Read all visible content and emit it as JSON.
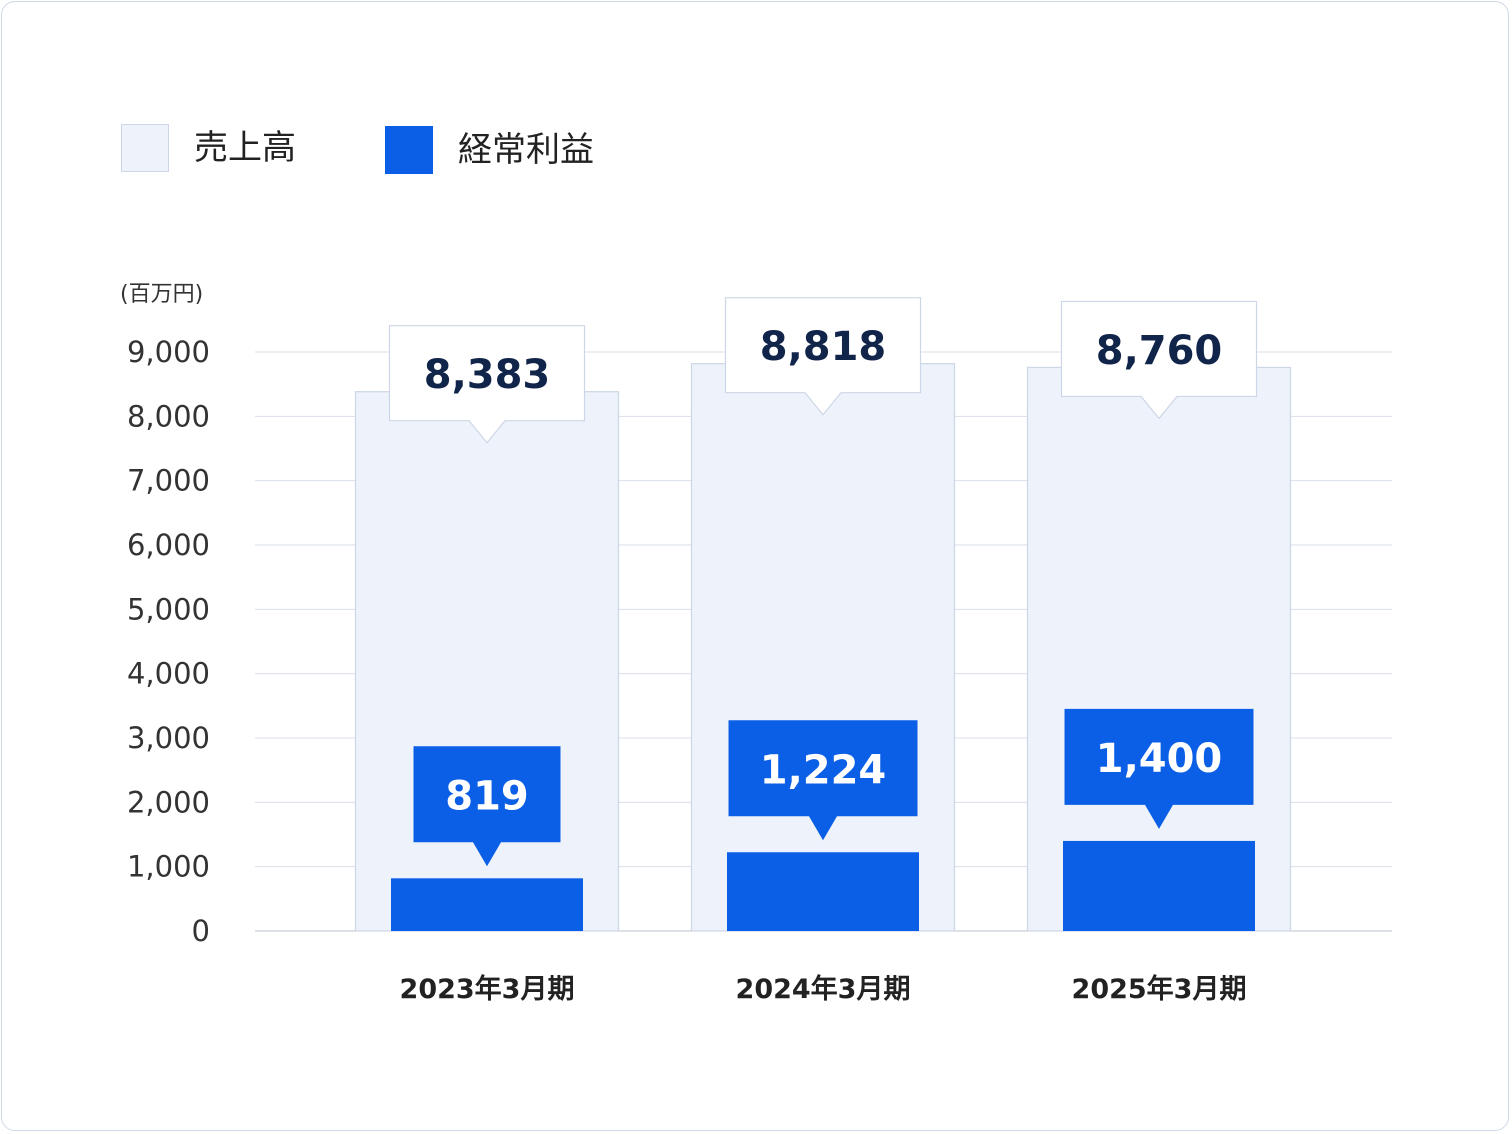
{
  "chart_data": {
    "type": "bar",
    "unit": "(百万円)",
    "categories": [
      "2023年3月期",
      "2024年3月期",
      "2025年3月期"
    ],
    "series": [
      {
        "name": "売上高",
        "values": [
          8383,
          8818,
          8760
        ],
        "labels": [
          "8,383",
          "8,818",
          "8,760"
        ]
      },
      {
        "name": "経常利益",
        "values": [
          819,
          1224,
          1400
        ],
        "labels": [
          "819",
          "1,224",
          "1,400"
        ]
      }
    ],
    "yticks": [
      0,
      1000,
      2000,
      3000,
      4000,
      5000,
      6000,
      7000,
      8000,
      9000
    ],
    "ytick_labels": [
      "0",
      "1,000",
      "2,000",
      "3,000",
      "4,000",
      "5,000",
      "6,000",
      "7,000",
      "8,000",
      "9,000"
    ],
    "ylim": [
      0,
      9000
    ],
    "grid": true,
    "legend_position": "top-left",
    "colors": {
      "sales": "#eef3fb",
      "sales_border": "#cdd6e6",
      "profit": "#0b5fe6"
    }
  }
}
